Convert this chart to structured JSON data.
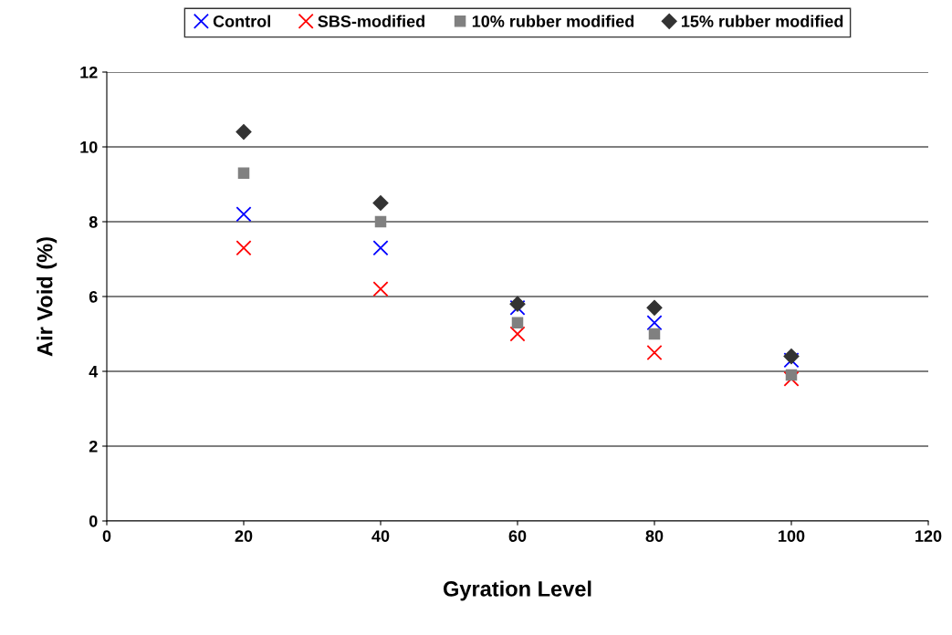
{
  "chart_data": {
    "type": "scatter",
    "xlabel": "Gyration Level",
    "ylabel": "Air Void (%)",
    "x": [
      20,
      40,
      60,
      80,
      100
    ],
    "series": [
      {
        "name": "Control",
        "color": "#0000ff",
        "marker": "cross",
        "values": [
          8.2,
          7.3,
          5.7,
          5.3,
          4.3
        ]
      },
      {
        "name": "SBS-modified",
        "color": "#ff0000",
        "marker": "cross",
        "values": [
          7.3,
          6.2,
          5.0,
          4.5,
          3.8
        ]
      },
      {
        "name": "10% rubber modified",
        "color": "#808080",
        "marker": "square",
        "values": [
          9.3,
          8.0,
          5.3,
          5.0,
          3.9
        ]
      },
      {
        "name": "15% rubber modified",
        "color": "#333333",
        "marker": "diamond",
        "values": [
          10.4,
          8.5,
          5.8,
          5.7,
          4.4
        ]
      }
    ],
    "xlim": [
      0,
      120
    ],
    "xticks": [
      0,
      20,
      40,
      60,
      80,
      100,
      120
    ],
    "ylim": [
      0,
      12
    ],
    "yticks": [
      0,
      2,
      4,
      6,
      8,
      10,
      12
    ],
    "grid": "y",
    "legend": "top"
  }
}
